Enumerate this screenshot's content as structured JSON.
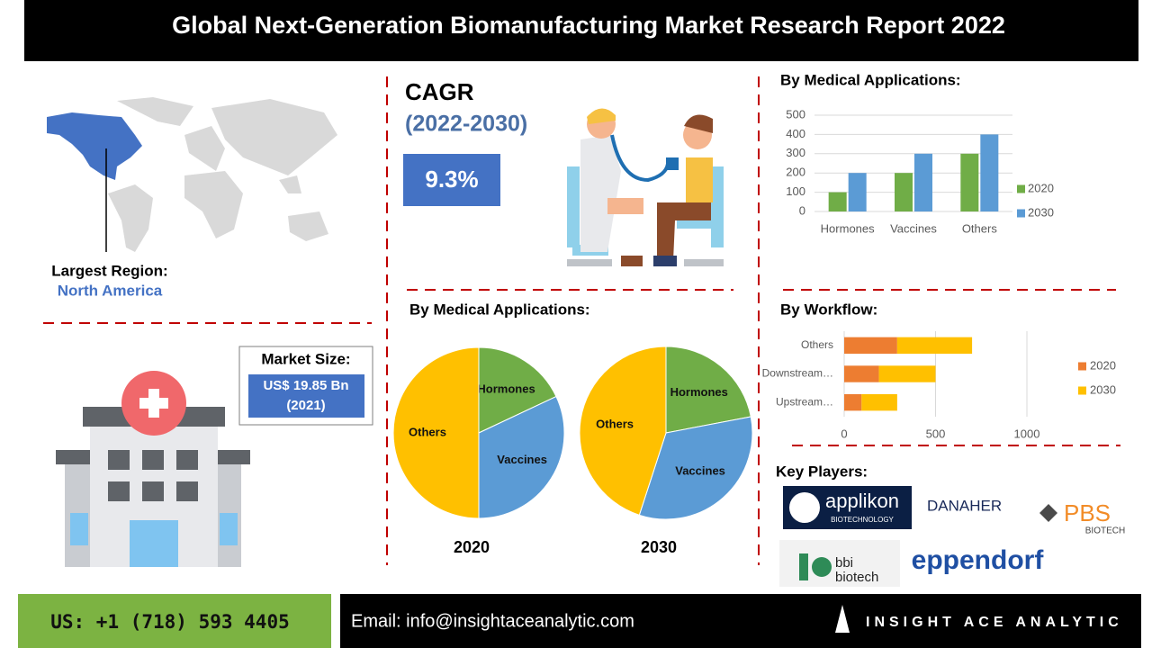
{
  "header": {
    "title": "Global Next-Generation Biomanufacturing Market Research Report 2022"
  },
  "cagr": {
    "label": "CAGR",
    "period": "(2022-2030)",
    "value": "9.3%"
  },
  "region": {
    "label": "Largest Region:",
    "value": "North America"
  },
  "market_size": {
    "label": "Market Size:",
    "value": "US$ 19.85 Bn",
    "year": "(2021)"
  },
  "sections": {
    "pies_title": "By Medical Applications:",
    "key_players": "Key Players:"
  },
  "key_players": [
    {
      "name": "applikon",
      "sub": "BIOTECHNOLOGY"
    },
    {
      "name": "DANAHER"
    },
    {
      "name": "PBS",
      "sub": "BIOTECH"
    },
    {
      "name": "bbi",
      "sub": "biotech"
    },
    {
      "name": "eppendorf"
    }
  ],
  "footer": {
    "phone": "US: +1 (718) 593 4405",
    "email": "Email: info@insightaceanalytic.com",
    "brand": "INSIGHT ACE ANALYTIC"
  },
  "chart_data": [
    {
      "type": "bar",
      "title": "By Medical Applications:",
      "categories": [
        "Hormones",
        "Vaccines",
        "Others"
      ],
      "series": [
        {
          "name": "2020",
          "color": "#70ad47",
          "values": [
            100,
            200,
            300
          ]
        },
        {
          "name": "2030",
          "color": "#5b9bd5",
          "values": [
            200,
            300,
            400
          ]
        }
      ],
      "ylim": [
        0,
        500
      ],
      "yticks": [
        0,
        100,
        200,
        300,
        400,
        500
      ],
      "grid": true
    },
    {
      "type": "hbar",
      "title": "By Workflow:",
      "stacked": true,
      "categories": [
        "Others",
        "Downstream…",
        "Upstream…"
      ],
      "series": [
        {
          "name": "2020",
          "color": "#ed7d31",
          "values": [
            290,
            190,
            95
          ]
        },
        {
          "name": "2030",
          "color": "#ffc000",
          "values": [
            410,
            310,
            195
          ]
        }
      ],
      "xlim": [
        0,
        1000
      ],
      "xticks": [
        0,
        500,
        1000
      ],
      "grid": true
    },
    {
      "type": "pie",
      "title": "2020",
      "categories": [
        "Hormones",
        "Vaccines",
        "Others"
      ],
      "values": [
        18,
        32,
        50
      ],
      "colors": [
        "#70ad47",
        "#5b9bd5",
        "#ffc000"
      ]
    },
    {
      "type": "pie",
      "title": "2030",
      "categories": [
        "Hormones",
        "Vaccines",
        "Others"
      ],
      "values": [
        22,
        33,
        45
      ],
      "colors": [
        "#70ad47",
        "#5b9bd5",
        "#ffc000"
      ]
    }
  ]
}
